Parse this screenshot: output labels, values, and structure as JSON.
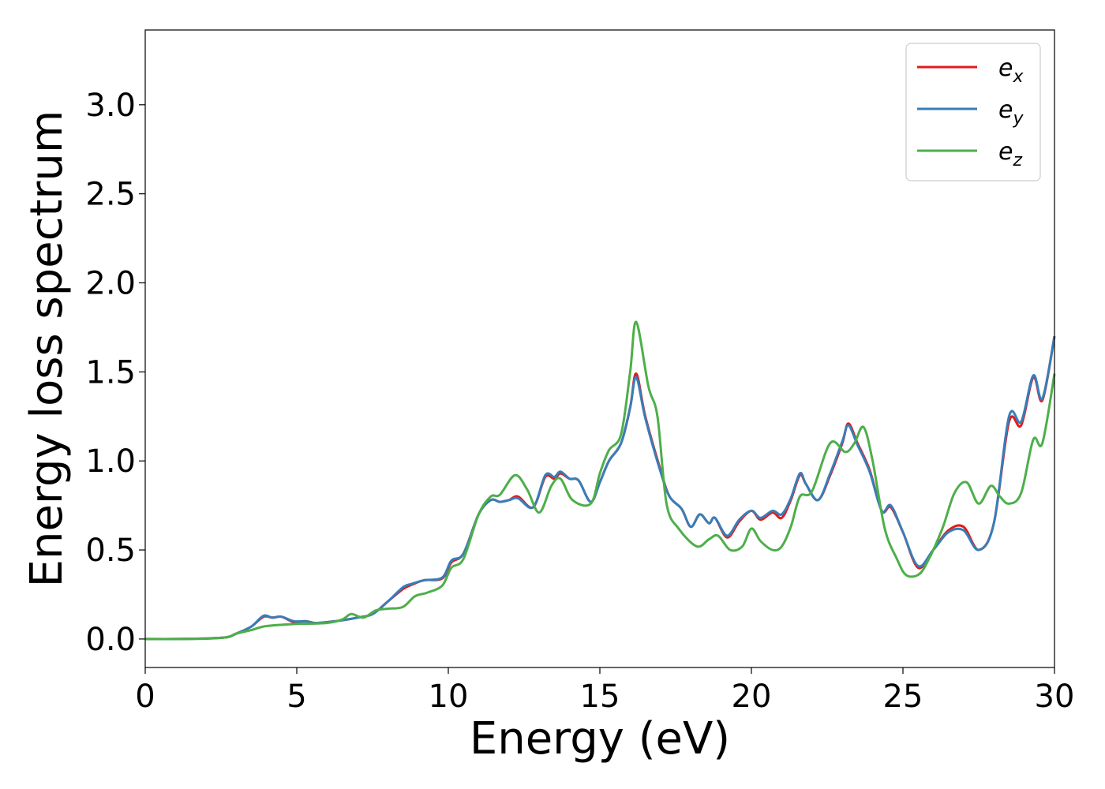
{
  "chart_data": {
    "type": "line",
    "title": "",
    "xlabel": "Energy (eV)",
    "ylabel": "Energy loss spectrum",
    "xlim": [
      0,
      30
    ],
    "ylim": [
      -0.16,
      3.42
    ],
    "xticks": [
      0,
      5,
      10,
      15,
      20,
      25,
      30
    ],
    "yticks": [
      0.0,
      0.5,
      1.0,
      1.5,
      2.0,
      2.5,
      3.0
    ],
    "grid": false,
    "legend_position": "top-right",
    "series": [
      {
        "name": "e",
        "subscript": "x",
        "color": "#e41a1c",
        "points": [
          [
            0,
            0
          ],
          [
            1,
            0
          ],
          [
            2,
            0.003
          ],
          [
            2.7,
            0.01
          ],
          [
            3.0,
            0.03
          ],
          [
            3.5,
            0.07
          ],
          [
            3.9,
            0.125
          ],
          [
            4.2,
            0.12
          ],
          [
            4.5,
            0.125
          ],
          [
            4.9,
            0.095
          ],
          [
            5.3,
            0.1
          ],
          [
            5.6,
            0.09
          ],
          [
            6.0,
            0.095
          ],
          [
            6.5,
            0.105
          ],
          [
            7.0,
            0.12
          ],
          [
            7.5,
            0.14
          ],
          [
            8.0,
            0.21
          ],
          [
            8.5,
            0.28
          ],
          [
            8.8,
            0.305
          ],
          [
            9.2,
            0.33
          ],
          [
            9.8,
            0.34
          ],
          [
            10.1,
            0.43
          ],
          [
            10.5,
            0.48
          ],
          [
            11.0,
            0.7
          ],
          [
            11.4,
            0.78
          ],
          [
            11.7,
            0.77
          ],
          [
            12.0,
            0.78
          ],
          [
            12.3,
            0.8
          ],
          [
            12.8,
            0.74
          ],
          [
            13.2,
            0.91
          ],
          [
            13.5,
            0.9
          ],
          [
            13.7,
            0.93
          ],
          [
            14.0,
            0.9
          ],
          [
            14.3,
            0.89
          ],
          [
            14.7,
            0.77
          ],
          [
            15.0,
            0.88
          ],
          [
            15.3,
            1.0
          ],
          [
            15.7,
            1.1
          ],
          [
            16.0,
            1.3
          ],
          [
            16.2,
            1.49
          ],
          [
            16.5,
            1.25
          ],
          [
            17.0,
            0.95
          ],
          [
            17.3,
            0.8
          ],
          [
            17.7,
            0.73
          ],
          [
            18.0,
            0.63
          ],
          [
            18.3,
            0.7
          ],
          [
            18.6,
            0.65
          ],
          [
            18.8,
            0.68
          ],
          [
            19.2,
            0.57
          ],
          [
            19.6,
            0.66
          ],
          [
            20.0,
            0.72
          ],
          [
            20.3,
            0.67
          ],
          [
            20.7,
            0.71
          ],
          [
            21.0,
            0.68
          ],
          [
            21.3,
            0.78
          ],
          [
            21.6,
            0.92
          ],
          [
            21.8,
            0.87
          ],
          [
            22.2,
            0.78
          ],
          [
            22.6,
            0.92
          ],
          [
            23.0,
            1.1
          ],
          [
            23.2,
            1.21
          ],
          [
            23.5,
            1.1
          ],
          [
            23.9,
            0.95
          ],
          [
            24.3,
            0.72
          ],
          [
            24.6,
            0.74
          ],
          [
            25.0,
            0.6
          ],
          [
            25.5,
            0.4
          ],
          [
            26.0,
            0.5
          ],
          [
            26.5,
            0.61
          ],
          [
            27.0,
            0.63
          ],
          [
            27.5,
            0.5
          ],
          [
            28.0,
            0.65
          ],
          [
            28.5,
            1.22
          ],
          [
            28.9,
            1.2
          ],
          [
            29.3,
            1.47
          ],
          [
            29.6,
            1.34
          ],
          [
            30.0,
            1.7
          ]
        ]
      },
      {
        "name": "e",
        "subscript": "y",
        "color": "#377eb8",
        "points": [
          [
            0,
            0
          ],
          [
            1,
            0
          ],
          [
            2,
            0.003
          ],
          [
            2.7,
            0.01
          ],
          [
            3.0,
            0.03
          ],
          [
            3.5,
            0.07
          ],
          [
            3.9,
            0.13
          ],
          [
            4.2,
            0.12
          ],
          [
            4.5,
            0.125
          ],
          [
            4.9,
            0.1
          ],
          [
            5.3,
            0.1
          ],
          [
            5.6,
            0.09
          ],
          [
            6.0,
            0.095
          ],
          [
            6.5,
            0.105
          ],
          [
            7.0,
            0.12
          ],
          [
            7.5,
            0.14
          ],
          [
            8.0,
            0.21
          ],
          [
            8.5,
            0.29
          ],
          [
            8.8,
            0.31
          ],
          [
            9.2,
            0.33
          ],
          [
            9.8,
            0.345
          ],
          [
            10.1,
            0.44
          ],
          [
            10.5,
            0.48
          ],
          [
            11.0,
            0.7
          ],
          [
            11.4,
            0.78
          ],
          [
            11.7,
            0.77
          ],
          [
            12.0,
            0.78
          ],
          [
            12.3,
            0.79
          ],
          [
            12.8,
            0.74
          ],
          [
            13.2,
            0.92
          ],
          [
            13.5,
            0.91
          ],
          [
            13.7,
            0.94
          ],
          [
            14.0,
            0.9
          ],
          [
            14.3,
            0.89
          ],
          [
            14.7,
            0.77
          ],
          [
            15.0,
            0.88
          ],
          [
            15.3,
            1.0
          ],
          [
            15.7,
            1.1
          ],
          [
            16.0,
            1.3
          ],
          [
            16.2,
            1.47
          ],
          [
            16.5,
            1.24
          ],
          [
            17.0,
            0.94
          ],
          [
            17.3,
            0.8
          ],
          [
            17.7,
            0.73
          ],
          [
            18.0,
            0.63
          ],
          [
            18.3,
            0.7
          ],
          [
            18.6,
            0.65
          ],
          [
            18.8,
            0.68
          ],
          [
            19.2,
            0.58
          ],
          [
            19.6,
            0.67
          ],
          [
            20.0,
            0.72
          ],
          [
            20.3,
            0.68
          ],
          [
            20.7,
            0.72
          ],
          [
            21.0,
            0.7
          ],
          [
            21.3,
            0.79
          ],
          [
            21.6,
            0.93
          ],
          [
            21.8,
            0.87
          ],
          [
            22.2,
            0.78
          ],
          [
            22.6,
            0.93
          ],
          [
            23.0,
            1.11
          ],
          [
            23.2,
            1.2
          ],
          [
            23.5,
            1.09
          ],
          [
            23.9,
            0.94
          ],
          [
            24.3,
            0.72
          ],
          [
            24.6,
            0.75
          ],
          [
            25.0,
            0.6
          ],
          [
            25.5,
            0.41
          ],
          [
            26.0,
            0.5
          ],
          [
            26.5,
            0.6
          ],
          [
            27.0,
            0.61
          ],
          [
            27.5,
            0.5
          ],
          [
            28.0,
            0.65
          ],
          [
            28.5,
            1.25
          ],
          [
            28.9,
            1.22
          ],
          [
            29.3,
            1.48
          ],
          [
            29.6,
            1.35
          ],
          [
            30.0,
            1.7
          ]
        ]
      },
      {
        "name": "e",
        "subscript": "z",
        "color": "#4daf4a",
        "points": [
          [
            0,
            0
          ],
          [
            1,
            0
          ],
          [
            2,
            0.002
          ],
          [
            2.7,
            0.01
          ],
          [
            3.0,
            0.03
          ],
          [
            3.5,
            0.05
          ],
          [
            3.9,
            0.07
          ],
          [
            4.5,
            0.08
          ],
          [
            5.0,
            0.085
          ],
          [
            6.0,
            0.09
          ],
          [
            6.5,
            0.11
          ],
          [
            6.8,
            0.14
          ],
          [
            7.2,
            0.12
          ],
          [
            7.6,
            0.16
          ],
          [
            8.0,
            0.17
          ],
          [
            8.5,
            0.18
          ],
          [
            8.9,
            0.24
          ],
          [
            9.3,
            0.26
          ],
          [
            9.8,
            0.3
          ],
          [
            10.1,
            0.4
          ],
          [
            10.5,
            0.45
          ],
          [
            11.0,
            0.7
          ],
          [
            11.4,
            0.8
          ],
          [
            11.7,
            0.81
          ],
          [
            12.2,
            0.92
          ],
          [
            12.6,
            0.84
          ],
          [
            13.0,
            0.71
          ],
          [
            13.4,
            0.86
          ],
          [
            13.7,
            0.9
          ],
          [
            14.1,
            0.78
          ],
          [
            14.7,
            0.76
          ],
          [
            15.0,
            0.93
          ],
          [
            15.3,
            1.06
          ],
          [
            15.7,
            1.15
          ],
          [
            16.0,
            1.5
          ],
          [
            16.2,
            1.78
          ],
          [
            16.6,
            1.42
          ],
          [
            16.9,
            1.25
          ],
          [
            17.2,
            0.76
          ],
          [
            17.6,
            0.62
          ],
          [
            18.2,
            0.52
          ],
          [
            18.6,
            0.56
          ],
          [
            18.9,
            0.58
          ],
          [
            19.3,
            0.5
          ],
          [
            19.7,
            0.52
          ],
          [
            20.0,
            0.62
          ],
          [
            20.3,
            0.55
          ],
          [
            20.7,
            0.5
          ],
          [
            21.0,
            0.52
          ],
          [
            21.3,
            0.63
          ],
          [
            21.6,
            0.8
          ],
          [
            22.0,
            0.83
          ],
          [
            22.6,
            1.1
          ],
          [
            23.1,
            1.05
          ],
          [
            23.4,
            1.1
          ],
          [
            23.7,
            1.19
          ],
          [
            24.0,
            1.0
          ],
          [
            24.4,
            0.62
          ],
          [
            24.8,
            0.45
          ],
          [
            25.1,
            0.36
          ],
          [
            25.5,
            0.36
          ],
          [
            25.8,
            0.43
          ],
          [
            26.3,
            0.62
          ],
          [
            26.7,
            0.82
          ],
          [
            27.1,
            0.88
          ],
          [
            27.5,
            0.76
          ],
          [
            27.9,
            0.86
          ],
          [
            28.2,
            0.8
          ],
          [
            28.5,
            0.76
          ],
          [
            28.9,
            0.82
          ],
          [
            29.3,
            1.12
          ],
          [
            29.6,
            1.1
          ],
          [
            30.0,
            1.49
          ]
        ]
      }
    ]
  }
}
